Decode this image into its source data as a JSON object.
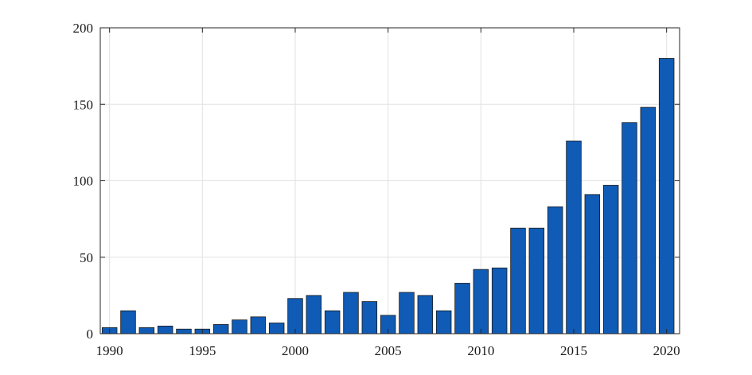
{
  "chart_data": {
    "type": "bar",
    "title": "",
    "xlabel": "",
    "ylabel": "",
    "x": [
      1990,
      1991,
      1992,
      1993,
      1994,
      1995,
      1996,
      1997,
      1998,
      1999,
      2000,
      2001,
      2002,
      2003,
      2004,
      2005,
      2006,
      2007,
      2008,
      2009,
      2010,
      2011,
      2012,
      2013,
      2014,
      2015,
      2016,
      2017,
      2018,
      2019,
      2020
    ],
    "values": [
      4,
      15,
      4,
      5,
      3,
      3,
      6,
      9,
      11,
      7,
      23,
      25,
      15,
      27,
      21,
      12,
      27,
      25,
      15,
      33,
      42,
      43,
      69,
      69,
      83,
      126,
      91,
      97,
      138,
      148,
      180
    ],
    "xlim": [
      1989.5,
      2020.7
    ],
    "ylim": [
      0,
      200
    ],
    "xticks": [
      1990,
      1995,
      2000,
      2005,
      2010,
      2015,
      2020
    ],
    "xtick_labels": [
      "1990",
      "1995",
      "2000",
      "2005",
      "2010",
      "2015",
      "2020"
    ],
    "yticks": [
      0,
      50,
      100,
      150,
      200
    ],
    "ytick_labels": [
      "0",
      "50",
      "100",
      "150",
      "200"
    ],
    "grid": true,
    "legend": "none",
    "bar_color": "#0f5bb5"
  }
}
